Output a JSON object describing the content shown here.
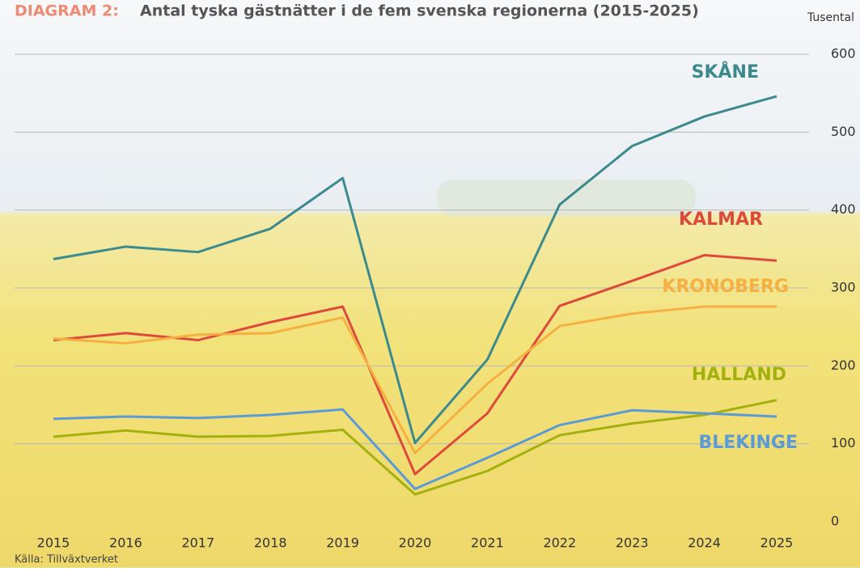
{
  "chart_data": {
    "type": "line",
    "title_prefix": "DIAGRAM 2:",
    "title": "Antal tyska gästnätter i de fem svenska regionerna (2015-2025)",
    "y_label": "Tusental",
    "source": "Källa: Tillväxtverket",
    "categories": [
      "2015",
      "2016",
      "2017",
      "2018",
      "2019",
      "2020",
      "2021",
      "2022",
      "2023",
      "2024",
      "2025"
    ],
    "ylim": [
      0,
      600
    ],
    "yticks": [
      0,
      100,
      200,
      300,
      400,
      500,
      600
    ],
    "grid": true,
    "series": [
      {
        "name": "SKÅNE",
        "color": "#3a8a8e",
        "values": [
          337,
          353,
          346,
          376,
          441,
          101,
          208,
          407,
          482,
          520,
          546
        ]
      },
      {
        "name": "KALMAR",
        "color": "#dd4a3c",
        "values": [
          233,
          242,
          233,
          256,
          276,
          61,
          139,
          277,
          309,
          342,
          335
        ]
      },
      {
        "name": "KRONOBERG",
        "color": "#f5b041",
        "values": [
          235,
          229,
          240,
          242,
          262,
          88,
          177,
          251,
          267,
          276,
          276
        ]
      },
      {
        "name": "HALLAND",
        "color": "#a3b10f",
        "values": [
          109,
          117,
          109,
          110,
          118,
          35,
          65,
          111,
          126,
          137,
          156
        ]
      },
      {
        "name": "BLEKINGE",
        "color": "#5b9bd5",
        "values": [
          132,
          135,
          133,
          137,
          144,
          42,
          82,
          124,
          143,
          139,
          135
        ]
      }
    ]
  }
}
